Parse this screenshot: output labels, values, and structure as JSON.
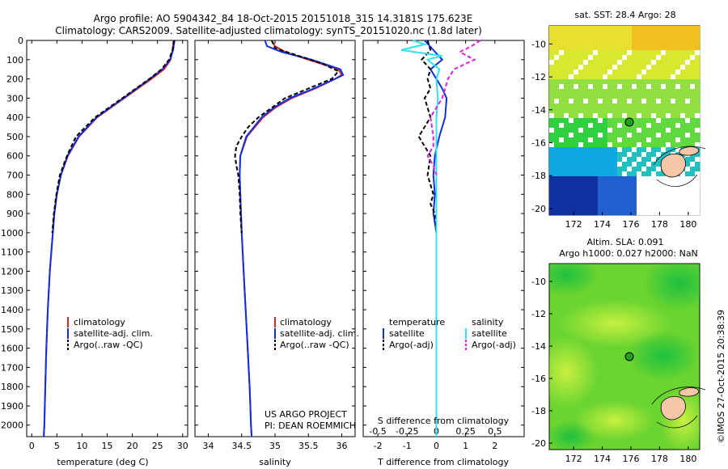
{
  "header": {
    "line1": "Argo profile: AO 5904342_84 18-Oct-2015 20151018_315 14.3181S 175.623E",
    "line2": "Climatology: CARS2009. Satellite-adjusted climatology: synTS_20151020.nc (1.8d later)"
  },
  "colors": {
    "climatology": "#e02020",
    "satellite": "#1030e0",
    "argo": "#000000",
    "satellite_salinity": "#30e0f0",
    "argo_salinity": "#e020e0"
  },
  "chart_data": [
    {
      "type": "line",
      "xlabel": "temperature (deg C)",
      "xlim": [
        -1,
        31
      ],
      "ylim": [
        2060,
        0
      ],
      "xticks": [
        0,
        5,
        10,
        15,
        20,
        25,
        30
      ],
      "yticks": [
        0,
        100,
        200,
        300,
        400,
        500,
        600,
        700,
        800,
        900,
        1000,
        1100,
        1200,
        1300,
        1400,
        1500,
        1600,
        1700,
        1800,
        1900,
        2000
      ],
      "legend": [
        "climatology",
        "satellite-adj. clim.",
        "Argo(..raw -QC)"
      ],
      "series": [
        {
          "name": "climatology",
          "style": "solid",
          "color": "#e02020",
          "depth": [
            0,
            50,
            100,
            150,
            200,
            300,
            400,
            500,
            600,
            700,
            800,
            900,
            1000,
            1200,
            1400,
            1600,
            1800,
            2000,
            2060
          ],
          "values": [
            28.2,
            28.0,
            27.6,
            26.3,
            23.8,
            18.4,
            13.0,
            9.4,
            7.2,
            5.8,
            5.0,
            4.5,
            4.2,
            3.6,
            3.2,
            2.9,
            2.7,
            2.5,
            2.4
          ]
        },
        {
          "name": "satellite-adj. clim.",
          "style": "solid",
          "color": "#1030e0",
          "depth": [
            0,
            50,
            100,
            150,
            200,
            300,
            400,
            500,
            600,
            700,
            800,
            900,
            1000,
            1200,
            1400,
            1600,
            1800,
            2000,
            2060
          ],
          "values": [
            28.4,
            28.1,
            27.5,
            26.0,
            23.5,
            18.2,
            12.9,
            9.3,
            7.1,
            5.8,
            5.0,
            4.5,
            4.2,
            3.6,
            3.2,
            2.9,
            2.7,
            2.5,
            2.4
          ]
        },
        {
          "name": "Argo(..raw -QC)",
          "style": "dashed",
          "color": "#000000",
          "depth": [
            0,
            50,
            100,
            150,
            200,
            300,
            400,
            500,
            600,
            700,
            800,
            900,
            1000
          ],
          "values": [
            28.3,
            28.0,
            27.3,
            25.8,
            23.4,
            18.0,
            12.6,
            8.8,
            7.0,
            5.6,
            4.9,
            4.4,
            4.1
          ]
        }
      ]
    },
    {
      "type": "line",
      "xlabel": "salinity",
      "xlim": [
        33.8,
        36.2
      ],
      "ylim": [
        2060,
        0
      ],
      "xticks": [
        34,
        34.5,
        35,
        35.5,
        36
      ],
      "legend": [
        "climatology",
        "satellite-adj. clim.",
        "Argo(..raw -QC)"
      ],
      "annotations": [
        "US ARGO PROJECT",
        "PI: DEAN ROEMMICH"
      ],
      "series": [
        {
          "name": "climatology",
          "style": "solid",
          "color": "#e02020",
          "depth": [
            0,
            30,
            60,
            100,
            150,
            180,
            200,
            250,
            300,
            350,
            400,
            500,
            600,
            700,
            800,
            1000,
            1200,
            1400,
            1600,
            1800,
            2000,
            2060
          ],
          "values": [
            34.95,
            35.0,
            35.15,
            35.5,
            35.95,
            36.0,
            35.9,
            35.6,
            35.25,
            35.0,
            34.82,
            34.58,
            34.48,
            34.47,
            34.48,
            34.5,
            34.53,
            34.56,
            34.59,
            34.62,
            34.64,
            34.65
          ]
        },
        {
          "name": "satellite-adj. clim.",
          "style": "solid",
          "color": "#1030e0",
          "depth": [
            0,
            30,
            60,
            100,
            150,
            180,
            200,
            250,
            300,
            350,
            400,
            500,
            600,
            700,
            800,
            1000,
            1200,
            1400,
            1600,
            1800,
            2000,
            2060
          ],
          "values": [
            34.85,
            34.88,
            35.1,
            35.55,
            35.98,
            36.02,
            35.9,
            35.58,
            35.22,
            34.98,
            34.8,
            34.57,
            34.48,
            34.47,
            34.48,
            34.5,
            34.53,
            34.56,
            34.59,
            34.62,
            34.64,
            34.65
          ]
        },
        {
          "name": "Argo(..raw -QC)",
          "style": "dashed",
          "color": "#000000",
          "depth": [
            0,
            40,
            80,
            120,
            160,
            200,
            250,
            300,
            350,
            400,
            450,
            500,
            550,
            600,
            650,
            700,
            800,
            900,
            1000
          ],
          "values": [
            34.95,
            35.0,
            35.35,
            35.7,
            35.95,
            35.85,
            35.5,
            35.15,
            34.95,
            34.75,
            34.6,
            34.5,
            34.42,
            34.4,
            34.42,
            34.45,
            34.47,
            34.48,
            34.5
          ]
        }
      ]
    },
    {
      "type": "line",
      "xlabel": "T difference from climatology",
      "xlabel_top": "S difference from climatology",
      "xlim": [
        -2.5,
        3.0
      ],
      "ylim": [
        2060,
        0
      ],
      "xticks": [
        -2,
        -1,
        0,
        1,
        2
      ],
      "xticks_top": [
        {
          "label": "-0.5",
          "at": -2
        },
        {
          "label": "-0.25",
          "at": -1
        },
        {
          "label": "0",
          "at": 0
        },
        {
          "label": "0.25",
          "at": 1
        },
        {
          "label": "0.5",
          "at": 2
        }
      ],
      "legend_titles": [
        "temperature",
        "salinity"
      ],
      "legend": [
        "satellite",
        "Argo(-adj)",
        "satellite",
        "Argo(-adj)"
      ],
      "series": [
        {
          "name": "satellite",
          "group": "temperature",
          "style": "solid",
          "color": "#1030e0",
          "depth": [
            0,
            50,
            100,
            150,
            200,
            250,
            300,
            400,
            500,
            600,
            700,
            800,
            900,
            1000,
            1200,
            1400,
            1600,
            1800,
            2000,
            2060
          ],
          "values": [
            -0.4,
            -0.1,
            0.2,
            -0.2,
            0.0,
            0.2,
            0.35,
            0.3,
            0.1,
            -0.05,
            -0.1,
            -0.05,
            -0.1,
            0.0,
            0.0,
            0.0,
            0.0,
            0.0,
            0.0,
            0.0
          ]
        },
        {
          "name": "Argo(-adj)",
          "group": "temperature",
          "style": "dashed",
          "color": "#000000",
          "depth": [
            0,
            50,
            100,
            150,
            200,
            250,
            300,
            400,
            500,
            600,
            700,
            800,
            850,
            900,
            1000
          ],
          "values": [
            -0.3,
            -0.2,
            -0.5,
            -0.2,
            -0.3,
            -0.2,
            -0.4,
            -0.2,
            -0.6,
            -0.2,
            -0.3,
            -0.1,
            -0.2,
            -0.05,
            0.0
          ]
        },
        {
          "name": "satellite",
          "group": "salinity",
          "style": "solid",
          "color": "#30e0f0",
          "depth": [
            0,
            20,
            50,
            80,
            100,
            150,
            200,
            300,
            400,
            500,
            600,
            800,
            1000,
            1200,
            1400,
            1600,
            1800,
            2000,
            2060
          ],
          "values": [
            -0.8,
            -0.4,
            -1.2,
            0.2,
            -0.3,
            0.1,
            0.0,
            0.05,
            0.0,
            0.0,
            0.0,
            0.0,
            0.0,
            0.0,
            0.0,
            0.0,
            0.0,
            0.0,
            0.0
          ]
        },
        {
          "name": "Argo(-adj)",
          "group": "salinity",
          "style": "dashed",
          "color": "#e020e0",
          "depth": [
            0,
            30,
            60,
            100,
            150,
            200,
            250,
            300,
            400,
            500,
            550,
            600,
            650,
            700
          ],
          "values": [
            1.5,
            1.2,
            0.8,
            1.3,
            0.6,
            0.4,
            0.3,
            0.2,
            -0.2,
            -0.1,
            -0.1,
            -0.3,
            -0.1,
            0.0
          ]
        }
      ]
    }
  ],
  "maps": [
    {
      "title": "sat. SST: 28.4 Argo: 28",
      "xticks": [
        172,
        174,
        176,
        178,
        180
      ],
      "yticks": [
        -10,
        -12,
        -14,
        -16,
        -18,
        -20
      ]
    },
    {
      "title1": "Altim. SLA: 0.091",
      "title2": "Argo h1000: 0.027 h2000: NaN",
      "xticks": [
        172,
        174,
        176,
        178,
        180
      ],
      "yticks": [
        -10,
        -12,
        -14,
        -16,
        -18,
        -20
      ]
    }
  ],
  "credit": "©IMOS 27-Oct-2015 20:38:39"
}
